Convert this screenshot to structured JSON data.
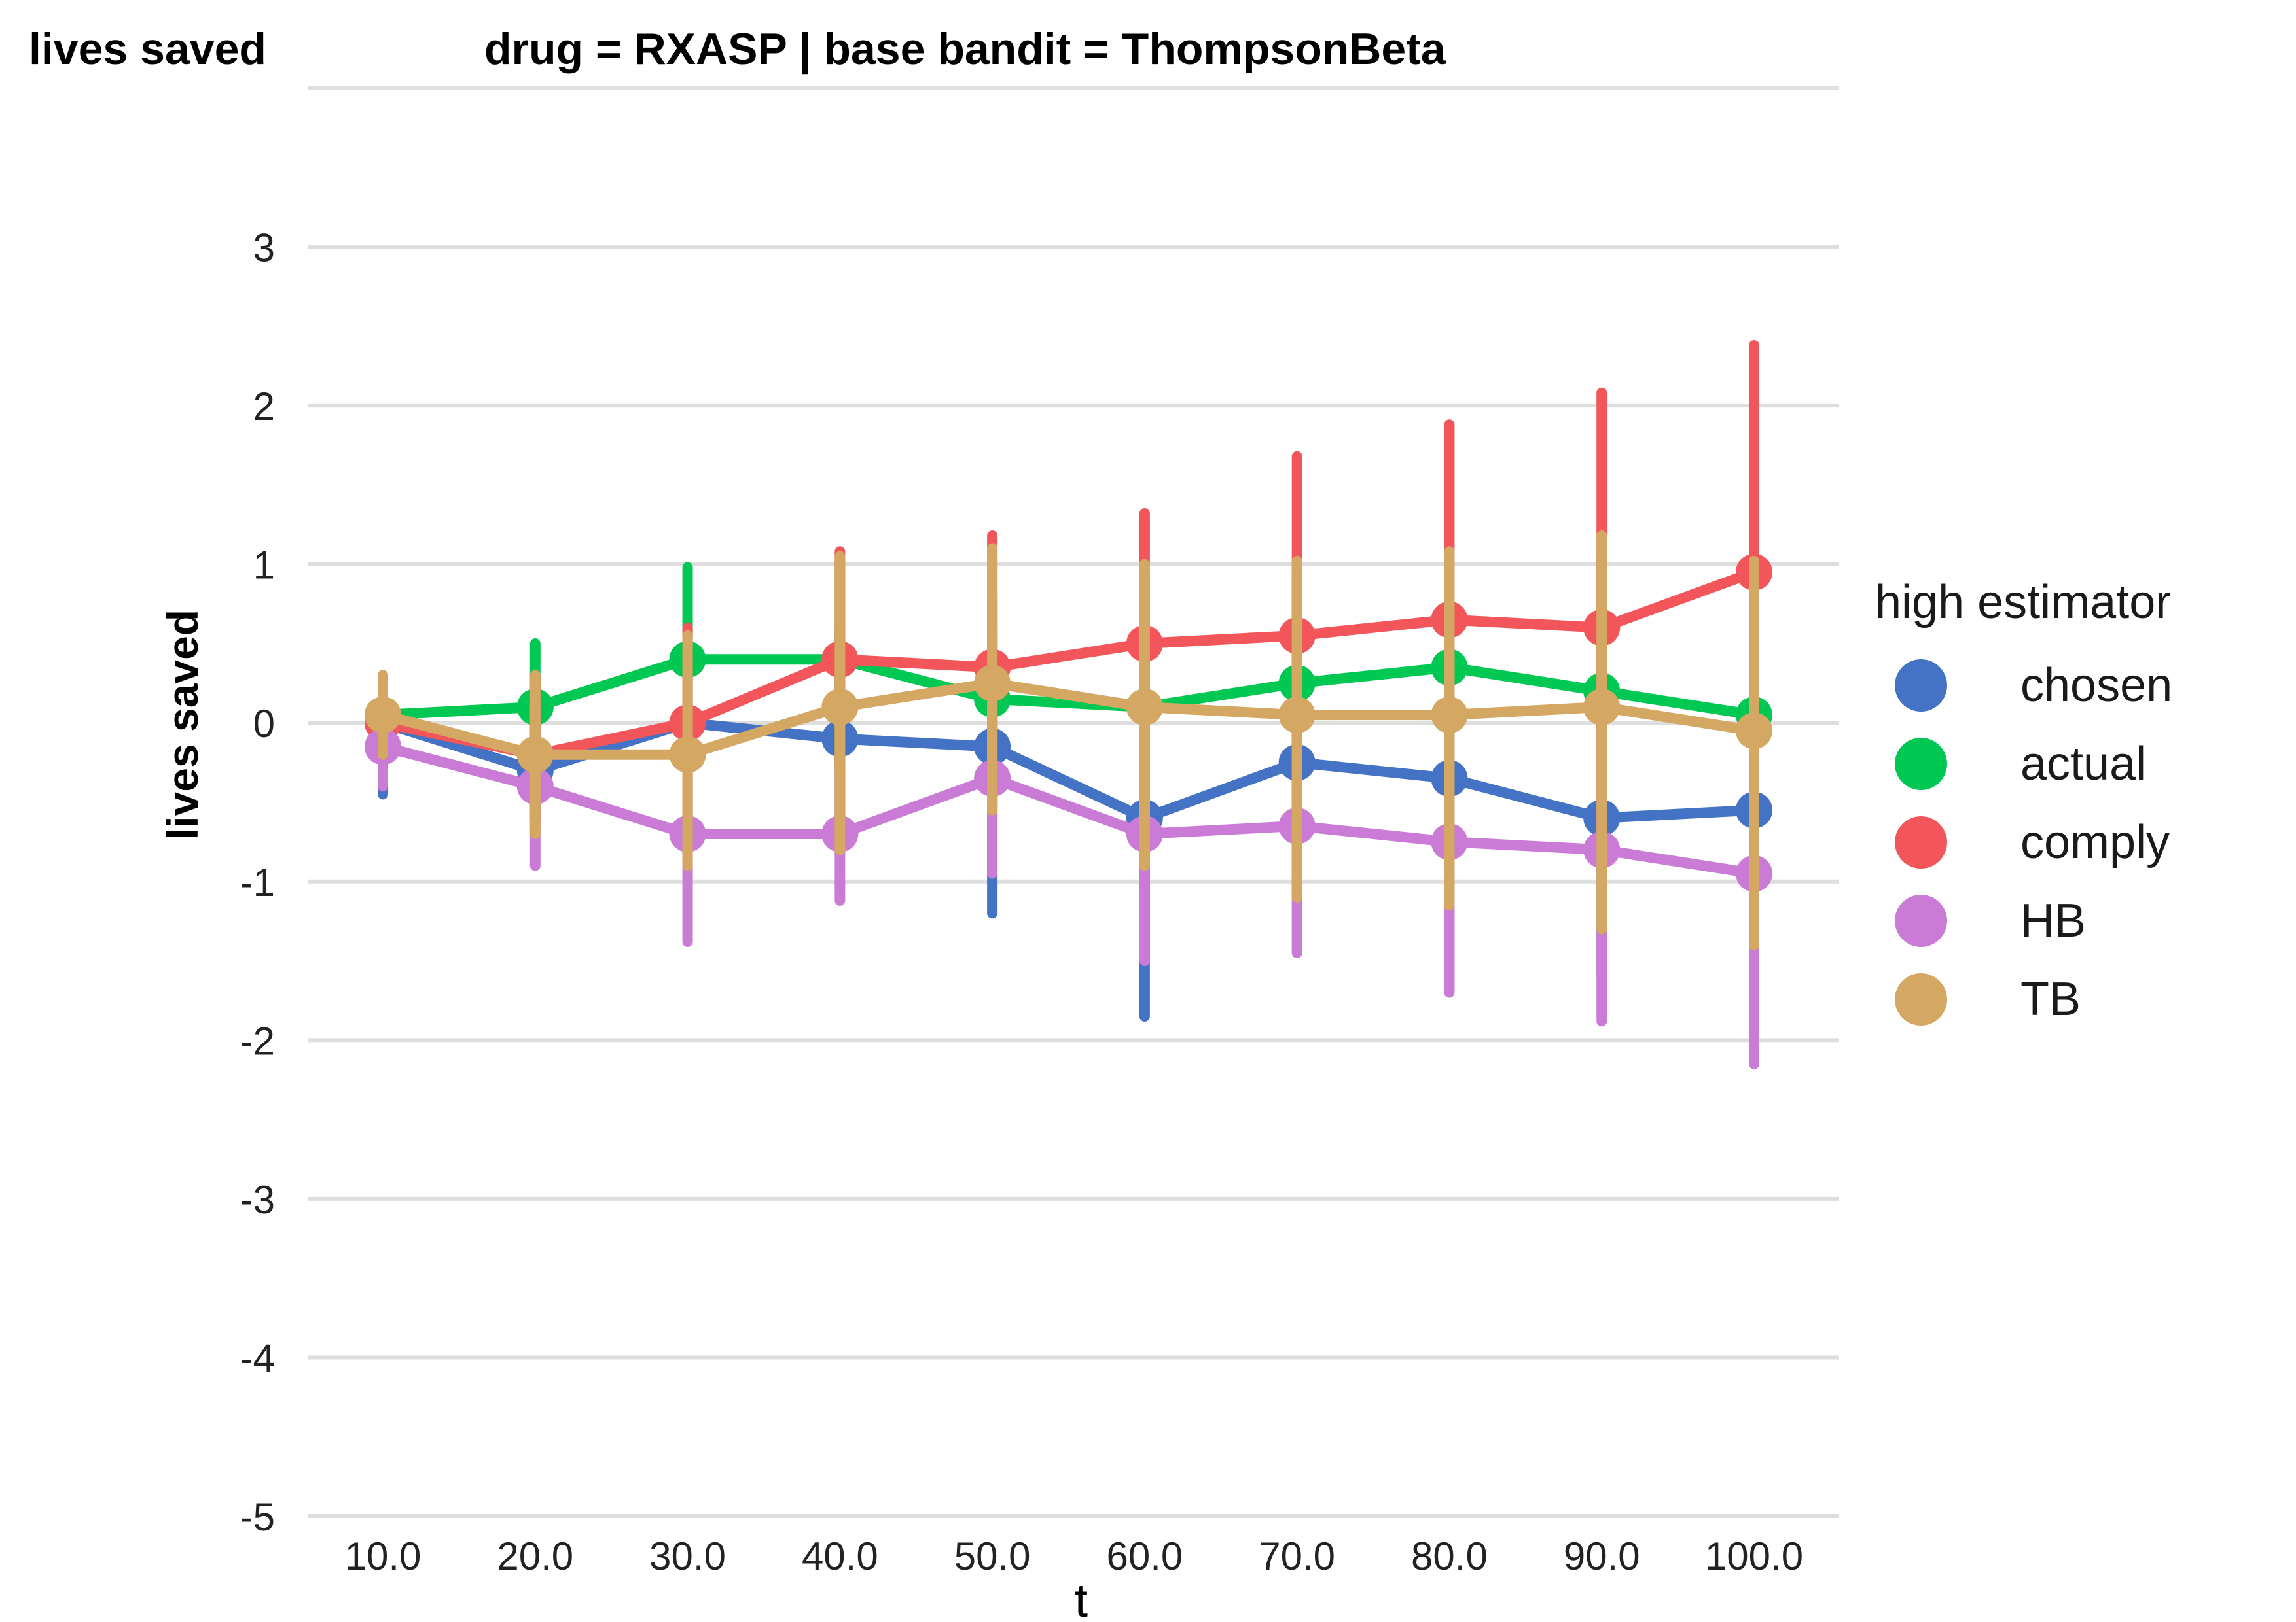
{
  "corner_label": "lives saved",
  "chart_data": {
    "type": "line",
    "title": "drug = RXASP | base bandit = ThompsonBeta",
    "xlabel": "t",
    "ylabel": "lives saved",
    "categories": [
      "10.0",
      "20.0",
      "30.0",
      "40.0",
      "50.0",
      "60.0",
      "70.0",
      "80.0",
      "90.0",
      "100.0"
    ],
    "ylim": [
      -5,
      4
    ],
    "yticks": [
      -5,
      -4,
      -3,
      -2,
      -1,
      0,
      1,
      2,
      3
    ],
    "ytick_labels": [
      "-5",
      "-4",
      "-3",
      "-2",
      "-1",
      "0",
      "1",
      "2",
      "3"
    ],
    "grid": "horizontal",
    "legend": {
      "title": "high estimator",
      "position": "right"
    },
    "series": [
      {
        "name": "chosen",
        "color": "#4472C4",
        "values": [
          0.0,
          -0.3,
          0.0,
          -0.1,
          -0.15,
          -0.6,
          -0.25,
          -0.35,
          -0.6,
          -0.55
        ],
        "lower": [
          -0.45,
          -0.6,
          -0.6,
          -0.8,
          -1.2,
          -1.85,
          -1.1,
          -1.2,
          -1.6,
          -1.8
        ],
        "upper": [
          0.3,
          0.1,
          0.6,
          0.6,
          0.6,
          0.75,
          0.6,
          0.6,
          0.7,
          0.8
        ]
      },
      {
        "name": "actual",
        "color": "#00C853",
        "values": [
          0.05,
          0.1,
          0.4,
          0.4,
          0.15,
          0.1,
          0.25,
          0.35,
          0.2,
          0.05
        ],
        "lower": [
          -0.15,
          -0.3,
          -0.2,
          -0.3,
          -0.5,
          -0.7,
          -0.5,
          -0.4,
          -0.6,
          -0.8
        ],
        "upper": [
          0.25,
          0.5,
          0.98,
          1.0,
          0.8,
          0.9,
          0.95,
          1.0,
          1.05,
          0.95
        ]
      },
      {
        "name": "comply",
        "color": "#F2555A",
        "values": [
          0.0,
          -0.2,
          0.0,
          0.4,
          0.35,
          0.5,
          0.55,
          0.65,
          0.6,
          0.95
        ],
        "lower": [
          -0.3,
          -0.6,
          -0.6,
          -0.3,
          -0.4,
          -0.3,
          -0.5,
          -0.6,
          -0.9,
          -0.5
        ],
        "upper": [
          0.25,
          0.3,
          0.6,
          1.08,
          1.18,
          1.32,
          1.68,
          1.88,
          2.08,
          2.38
        ]
      },
      {
        "name": "HB",
        "color": "#C97BD6",
        "values": [
          -0.15,
          -0.4,
          -0.7,
          -0.7,
          -0.35,
          -0.7,
          -0.65,
          -0.75,
          -0.8,
          -0.95
        ],
        "lower": [
          -0.4,
          -0.9,
          -1.38,
          -1.12,
          -0.95,
          -1.5,
          -1.45,
          -1.7,
          -1.88,
          -2.15
        ],
        "upper": [
          0.1,
          0.1,
          -0.1,
          -0.2,
          0.2,
          0.1,
          0.1,
          0.1,
          0.1,
          0.2
        ]
      },
      {
        "name": "TB",
        "color": "#D4A762",
        "values": [
          0.05,
          -0.2,
          -0.2,
          0.1,
          0.25,
          0.1,
          0.05,
          0.05,
          0.1,
          -0.05
        ],
        "lower": [
          -0.2,
          -0.7,
          -0.9,
          -0.8,
          -0.55,
          -0.9,
          -1.1,
          -1.15,
          -1.3,
          -1.4
        ],
        "upper": [
          0.3,
          0.3,
          0.55,
          1.05,
          1.1,
          1.0,
          1.02,
          1.08,
          1.18,
          1.02
        ]
      }
    ]
  }
}
